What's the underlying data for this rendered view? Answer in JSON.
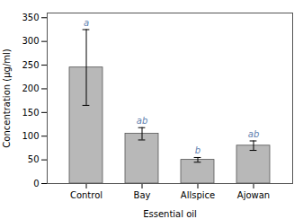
{
  "chart_data": {
    "type": "bar",
    "categories": [
      "Control",
      "Bay",
      "Allspice",
      "Ajowan"
    ],
    "values": [
      245,
      105,
      50,
      80
    ],
    "errors": [
      80,
      13,
      5,
      10
    ],
    "letters": [
      "a",
      "ab",
      "b",
      "ab"
    ],
    "color": "#b8b8b8",
    "xlabel": "Essential oil",
    "ylabel": "Concentration (μg/ml)",
    "ylim": [
      0,
      360
    ],
    "yticks": [
      0,
      50,
      100,
      150,
      200,
      250,
      300,
      350
    ],
    "grid": false
  }
}
